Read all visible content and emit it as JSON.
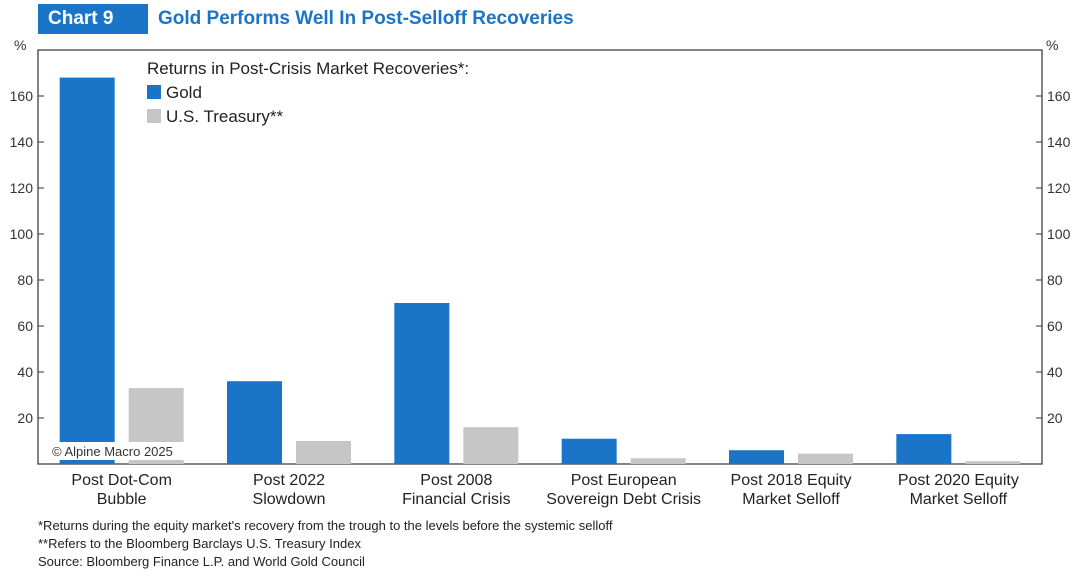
{
  "header": {
    "chart_label": "Chart 9",
    "title": "Gold Performs Well In Post-Selloff Recoveries"
  },
  "chart_data": {
    "type": "bar",
    "legend_title": "Returns in Post-Crisis Market Recoveries*:",
    "categories": [
      [
        "Post Dot-Com",
        "Bubble"
      ],
      [
        "Post 2022",
        "Slowdown"
      ],
      [
        "Post 2008",
        "Financial Crisis"
      ],
      [
        "Post European",
        "Sovereign Debt Crisis"
      ],
      [
        "Post 2018 Equity",
        "Market Selloff"
      ],
      [
        "Post 2020 Equity",
        "Market Selloff"
      ]
    ],
    "series": [
      {
        "name": "Gold",
        "color": "#1a75c9",
        "values": [
          168,
          36,
          70,
          11,
          6,
          13
        ]
      },
      {
        "name": "U.S. Treasury**",
        "color": "#c6c6c6",
        "values": [
          33,
          10,
          16,
          2.5,
          4.5,
          1.2
        ]
      }
    ],
    "y_unit_left": "%",
    "y_unit_right": "%",
    "yticks": [
      20,
      40,
      60,
      80,
      100,
      120,
      140,
      160
    ],
    "ylim": [
      0,
      180
    ],
    "legend_position": "top-left",
    "watermark": "© Alpine Macro 2025"
  },
  "footnotes": [
    "*Returns during the equity market's recovery from the trough to the levels before the systemic selloff",
    "**Refers to the Bloomberg Barclays U.S. Treasury Index",
    "Source: Bloomberg Finance L.P. and World Gold Council"
  ]
}
